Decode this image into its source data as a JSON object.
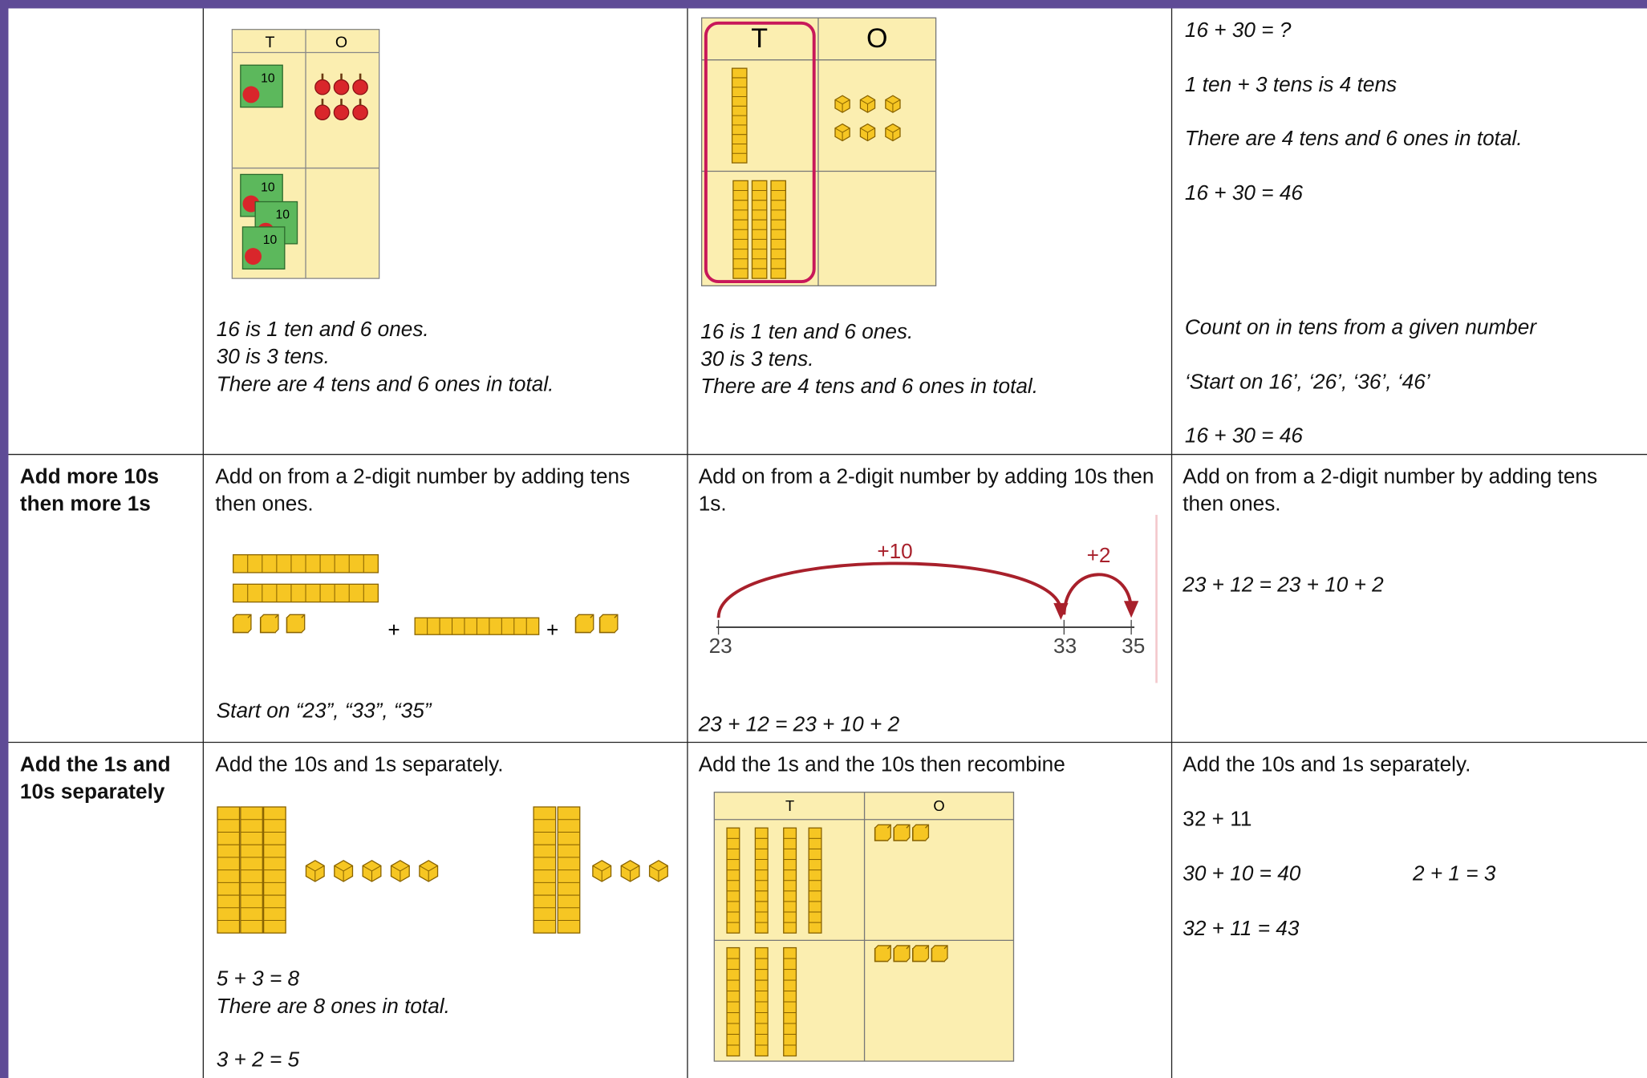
{
  "table": {
    "rows": [
      {
        "cells": [
          {
            "diagram": {
              "headers": [
                "T",
                "O"
              ],
              "box_label": "10"
            },
            "lines": [
              "16 is 1 ten and 6 ones.",
              "30 is 3 tens.",
              "There are 4 tens and 6 ones in total."
            ]
          },
          {
            "diagram": {
              "headers": [
                "T",
                "O"
              ]
            },
            "lines": [
              "16 is 1 ten and 6 ones.",
              "30 is 3 tens.",
              "There are 4 tens and 6 ones in total."
            ]
          },
          {
            "lines": [
              "16 + 30 = ?",
              "1 ten + 3 tens is 4 tens",
              "There are 4 tens and 6 ones in total.",
              "16 + 30 = 46",
              "Count on in tens from a given number",
              "‘Start on 16’, ‘26’, ‘36’, ‘46’",
              "16 + 30 = 46"
            ]
          }
        ]
      },
      {
        "heading": "Add more 10s then more 1s",
        "cells": [
          {
            "text": "Add on from a 2-digit number by adding tens then ones.",
            "diagram": {
              "signs": [
                "+",
                "+"
              ]
            },
            "lines": [
              "Start on “23”, “33”, “35”"
            ]
          },
          {
            "text": "Add on from a 2-digit number by adding 10s then 1s.",
            "diagram": {
              "jumps": [
                "+10",
                "+2"
              ],
              "marks": [
                "23",
                "33",
                "35"
              ]
            },
            "lines": [
              "23 + 12 = 23 + 10 + 2"
            ]
          },
          {
            "text": "Add on from a 2-digit number by adding tens then ones.",
            "lines": [
              "23 + 12 = 23 + 10 + 2"
            ]
          }
        ]
      },
      {
        "heading": "Add the 1s and 10s separately",
        "cells": [
          {
            "text": "Add the 10s and 1s separately.",
            "lines": [
              "5 + 3 = 8",
              "There are 8 ones in total.",
              "3 + 2 = 5"
            ]
          },
          {
            "text": "Add the 1s and the 10s then recombine",
            "diagram": {
              "headers": [
                "T",
                "O"
              ]
            }
          },
          {
            "text": "Add the 10s and 1s separately.",
            "lines": [
              "32 + 11",
              "30 + 10 = 40",
              "2 + 1 = 3",
              "32 + 11 = 43"
            ]
          }
        ]
      }
    ]
  }
}
